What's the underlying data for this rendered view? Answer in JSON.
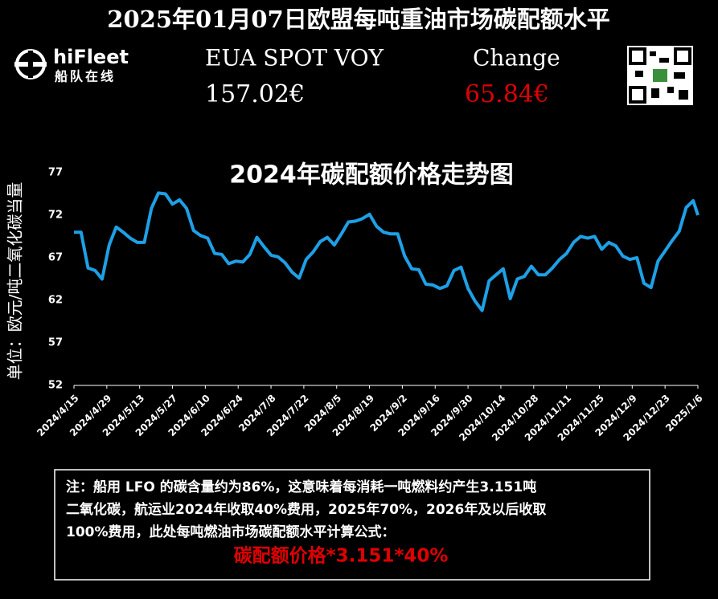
{
  "header": {
    "title": "2025年01月07日欧盟每吨重油市场碳配额水平",
    "brand": "hiFleet",
    "brand_sub": "船队在线",
    "spot_label": "EUA SPOT VOY",
    "spot_value": "157.02€",
    "change_label": "Change",
    "change_value": "65.84€"
  },
  "chart_data": {
    "type": "line",
    "title": "2024年碳配额价格走势图",
    "y_label": "单位：欧元/吨二氧化碳当量",
    "x": [
      "2024/4/15",
      "2024/4/18",
      "2024/4/21",
      "2024/4/24",
      "2024/4/27",
      "2024/4/30",
      "2024/5/3",
      "2024/5/6",
      "2024/5/9",
      "2024/5/12",
      "2024/5/15",
      "2024/5/18",
      "2024/5/21",
      "2024/5/24",
      "2024/5/27",
      "2024/5/30",
      "2024/6/2",
      "2024/6/5",
      "2024/6/8",
      "2024/6/11",
      "2024/6/14",
      "2024/6/17",
      "2024/6/20",
      "2024/6/23",
      "2024/6/26",
      "2024/6/29",
      "2024/7/2",
      "2024/7/5",
      "2024/7/8",
      "2024/7/11",
      "2024/7/14",
      "2024/7/17",
      "2024/7/20",
      "2024/7/23",
      "2024/7/26",
      "2024/7/29",
      "2024/8/1",
      "2024/8/4",
      "2024/8/7",
      "2024/8/10",
      "2024/8/13",
      "2024/8/16",
      "2024/8/19",
      "2024/8/22",
      "2024/8/25",
      "2024/8/28",
      "2024/8/31",
      "2024/9/3",
      "2024/9/6",
      "2024/9/9",
      "2024/9/12",
      "2024/9/15",
      "2024/9/18",
      "2024/9/21",
      "2024/9/24",
      "2024/9/27",
      "2024/9/30",
      "2024/10/3",
      "2024/10/6",
      "2024/10/9",
      "2024/10/12",
      "2024/10/15",
      "2024/10/18",
      "2024/10/21",
      "2024/10/24",
      "2024/10/27",
      "2024/10/30",
      "2024/11/2",
      "2024/11/5",
      "2024/11/8",
      "2024/11/11",
      "2024/11/14",
      "2024/11/17",
      "2024/11/20",
      "2024/11/23",
      "2024/11/26",
      "2024/11/29",
      "2024/12/2",
      "2024/12/5",
      "2024/12/8",
      "2024/12/11",
      "2024/12/14",
      "2024/12/17",
      "2024/12/20",
      "2024/12/23",
      "2024/12/26",
      "2024/12/29",
      "2025/1/1",
      "2025/1/4",
      "2025/1/6"
    ],
    "series": [
      {
        "color": "#1ea0e6",
        "values": [
          70,
          70,
          65.8,
          65.5,
          64.5,
          68.5,
          70.6,
          70,
          69.3,
          68.8,
          68.8,
          72.8,
          74.6,
          74.5,
          73.3,
          73.8,
          72.8,
          70.2,
          69.6,
          69.3,
          67.5,
          67.4,
          66.3,
          66.6,
          66.5,
          67.4,
          69.4,
          68.3,
          67.3,
          67.1,
          66.4,
          65.3,
          64.6,
          66.8,
          67.7,
          68.9,
          69.4,
          68.5,
          69.8,
          71.2,
          71.3,
          71.6,
          72.1,
          70.7,
          70,
          69.8,
          69.8,
          67.2,
          65.7,
          65.6,
          63.9,
          63.8,
          63.4,
          63.7,
          65.5,
          65.9,
          63.4,
          61.9,
          60.8,
          64.3,
          65,
          65.7,
          62.2,
          64.5,
          64.8,
          66,
          65,
          65,
          65.8,
          66.8,
          67.5,
          68.8,
          69.5,
          69.3,
          69.5,
          68,
          68.8,
          68.4,
          67.2,
          66.8,
          67,
          64,
          63.5,
          66.6,
          67.8,
          69,
          70.1,
          72.9,
          73.7,
          72
        ]
      }
    ],
    "xticks": [
      "2024/4/15",
      "2024/4/29",
      "2024/5/13",
      "2024/5/27",
      "2024/6/10",
      "2024/6/24",
      "2024/7/8",
      "2024/7/22",
      "2024/8/5",
      "2024/8/19",
      "2024/9/2",
      "2024/9/16",
      "2024/9/30",
      "2024/10/14",
      "2024/10/28",
      "2024/11/11",
      "2024/11/25",
      "2024/12/9",
      "2024/12/23",
      "2025/1/6"
    ],
    "ylim": [
      52,
      77
    ],
    "yticks": [
      52,
      57,
      62,
      67,
      72,
      77
    ],
    "grid": false
  },
  "note": {
    "lines": [
      "注：船用 LFO 的碳含量约为86%，这意味着每消耗一吨燃料约产生3.151吨",
      "二氧化碳，航运业2024年收取40%费用，2025年70%，2026年及以后收取",
      "100%费用，此处每吨燃油市场碳配额水平计算公式："
    ],
    "formula": "碳配额价格*3.151*40%"
  }
}
